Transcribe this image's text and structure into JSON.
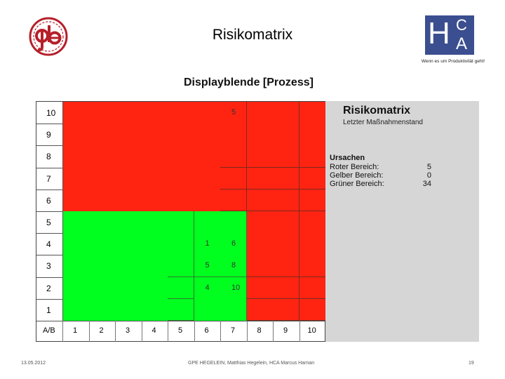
{
  "slide": {
    "title": "Risikomatrix",
    "subtitle": "Displayblende [Prozess]",
    "tagline": "Wenn es um Produktivität geht!",
    "right_logo": {
      "letters": [
        "H",
        "C",
        "A"
      ]
    },
    "left_logo": {
      "name": "ghe-circle-logo"
    }
  },
  "matrix": {
    "corner_label": "A/B",
    "y_labels": [
      "10",
      "9",
      "8",
      "7",
      "6",
      "5",
      "4",
      "3",
      "2",
      "1"
    ],
    "x_labels": [
      "1",
      "2",
      "3",
      "4",
      "5",
      "6",
      "7",
      "8",
      "9",
      "10"
    ],
    "cell_values": [
      {
        "row": "10",
        "col": "7",
        "value": "5"
      },
      {
        "row": "4",
        "col": "6",
        "value": "1"
      },
      {
        "row": "4",
        "col": "7",
        "value": "6"
      },
      {
        "row": "3",
        "col": "6",
        "value": "5"
      },
      {
        "row": "3",
        "col": "7",
        "value": "8"
      },
      {
        "row": "2",
        "col": "6",
        "value": "4"
      },
      {
        "row": "2",
        "col": "7",
        "value": "10"
      }
    ],
    "colors": {
      "red": "#ff2412",
      "green": "#00ff1e"
    }
  },
  "info_panel": {
    "title": "Risikomatrix",
    "subtitle": "Letzter Maßnahmenstand",
    "causes_heading": "Ursachen",
    "rows": [
      {
        "label": "Roter Bereich:",
        "value": "5"
      },
      {
        "label": "Gelber Bereich:",
        "value": "0"
      },
      {
        "label": "Grüner Bereich:",
        "value": "34"
      }
    ]
  },
  "footer": {
    "date": "13.05.2012",
    "credit": "GPE HEGELEIN, Matthias Hegelein, HCA Marcus Harnan",
    "page": "19"
  }
}
